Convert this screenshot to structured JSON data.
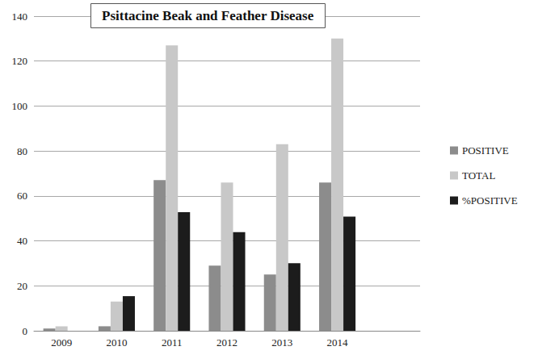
{
  "chart_data": {
    "type": "bar",
    "title": "Psittacine Beak and Feather Disease",
    "categories": [
      "2009",
      "2010",
      "2011",
      "2012",
      "2013",
      "2014",
      null
    ],
    "series": [
      {
        "name": "POSITIVE",
        "color": "#8c8c8c",
        "values": [
          1,
          2,
          67,
          29,
          25,
          66,
          null
        ]
      },
      {
        "name": "TOTAL",
        "color": "#c8c8c8",
        "values": [
          2,
          13,
          127,
          66,
          83,
          130,
          null
        ]
      },
      {
        "name": "%POSITIVE",
        "color": "#1c1c1c",
        "values": [
          null,
          15.4,
          52.8,
          43.9,
          30.1,
          50.8,
          null
        ]
      }
    ],
    "ylim": [
      0,
      140
    ],
    "yticks": [
      0,
      20,
      40,
      60,
      80,
      100,
      120,
      140
    ],
    "grid": true,
    "legend": "right"
  }
}
